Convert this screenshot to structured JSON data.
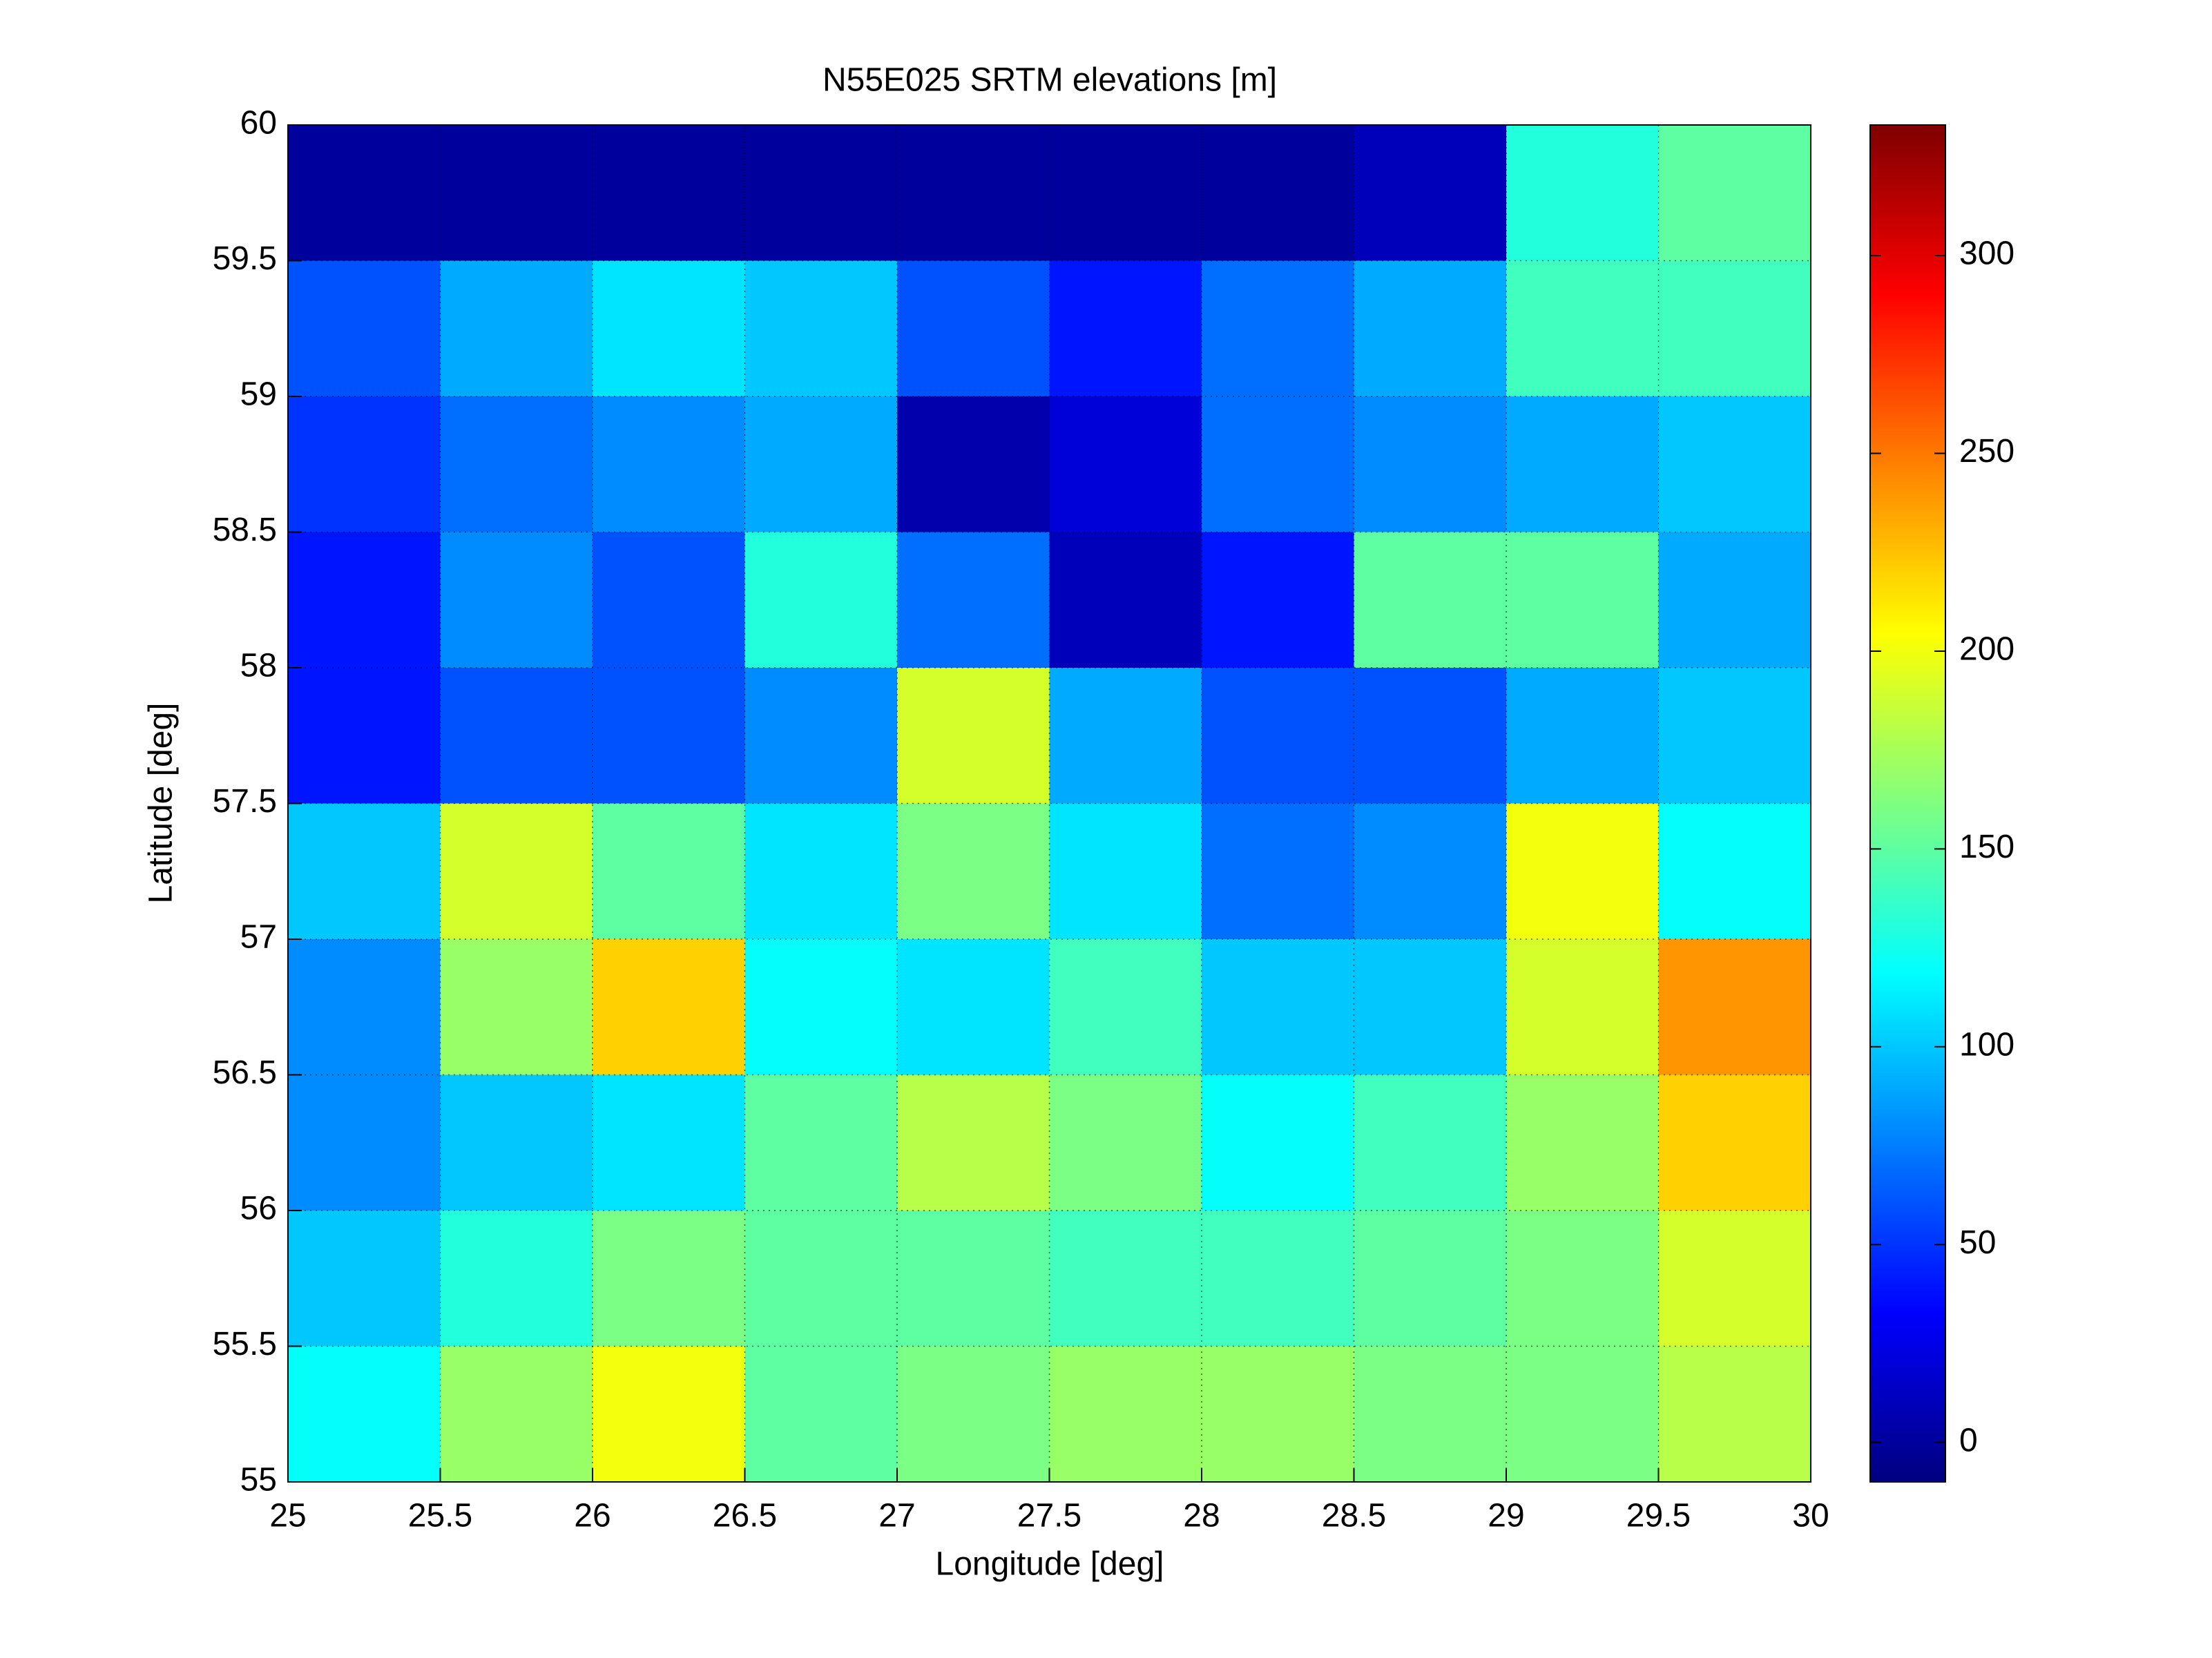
{
  "chart_data": {
    "type": "heatmap",
    "title": "N55E025 SRTM elevations [m]",
    "x_label": "Longitude [deg]",
    "y_label": "Latitude [deg]",
    "x": [
      25.25,
      25.75,
      26.25,
      26.75,
      27.25,
      27.75,
      28.25,
      28.75,
      29.25,
      29.75
    ],
    "y": [
      59.75,
      59.25,
      58.75,
      58.25,
      57.75,
      57.25,
      56.75,
      56.25,
      55.75,
      55.25
    ],
    "z": [
      [
        0,
        0,
        0,
        0,
        0,
        0,
        0,
        10,
        130,
        150
      ],
      [
        60,
        90,
        110,
        100,
        60,
        40,
        70,
        90,
        140,
        140
      ],
      [
        50,
        70,
        80,
        90,
        5,
        20,
        70,
        80,
        90,
        100
      ],
      [
        40,
        80,
        60,
        130,
        70,
        10,
        40,
        150,
        150,
        90
      ],
      [
        40,
        60,
        60,
        80,
        190,
        90,
        60,
        60,
        90,
        100
      ],
      [
        100,
        190,
        150,
        110,
        160,
        110,
        70,
        80,
        200,
        120
      ],
      [
        80,
        170,
        220,
        120,
        110,
        140,
        100,
        100,
        190,
        240
      ],
      [
        80,
        100,
        110,
        150,
        180,
        160,
        120,
        140,
        170,
        220
      ],
      [
        100,
        130,
        160,
        150,
        150,
        140,
        140,
        150,
        160,
        190
      ],
      [
        120,
        170,
        200,
        150,
        160,
        170,
        170,
        160,
        160,
        180
      ]
    ],
    "colormap": "jet",
    "clim": [
      -10,
      333
    ],
    "xlim": [
      25,
      30
    ],
    "ylim": [
      55,
      60
    ],
    "xticks": [
      25,
      25.5,
      26,
      26.5,
      27,
      27.5,
      28,
      28.5,
      29,
      29.5,
      30
    ],
    "yticks": [
      55,
      55.5,
      56,
      56.5,
      57,
      57.5,
      58,
      58.5,
      59,
      59.5,
      60
    ],
    "cticks": [
      0,
      50,
      100,
      150,
      200,
      250,
      300
    ],
    "grid": true
  }
}
